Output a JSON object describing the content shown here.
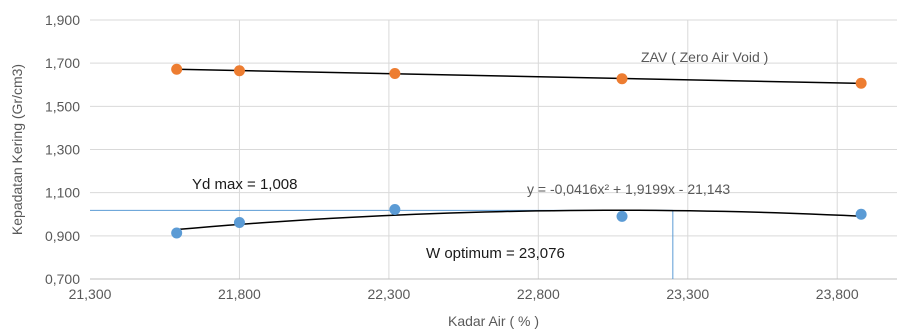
{
  "chart_data": {
    "type": "scatter",
    "xlabel": "Kadar Air ( % )",
    "ylabel": "Kepadatan Kering (Gr/cm3)",
    "xlim": [
      21300,
      24000
    ],
    "ylim": [
      0.7,
      1.9
    ],
    "x_ticks": [
      21300,
      21800,
      22300,
      22800,
      23300,
      23800
    ],
    "x_tick_labels": [
      "21,300",
      "21,800",
      "22,300",
      "22,800",
      "23,300",
      "23,800"
    ],
    "y_ticks": [
      0.7,
      0.9,
      1.1,
      1.3,
      1.5,
      1.7,
      1.9
    ],
    "y_tick_labels": [
      "0,700",
      "0,900",
      "1,100",
      "1,300",
      "1,500",
      "1,700",
      "1,900"
    ],
    "grid": true,
    "series": [
      {
        "name": "ZAV ( Zero Air Void )",
        "color": "#ED7D31",
        "x": [
          21590,
          21800,
          22320,
          23080,
          23880
        ],
        "y": [
          1.672,
          1.665,
          1.652,
          1.628,
          1.607
        ],
        "trend": "linear"
      },
      {
        "color": "#5B9BD5",
        "x": [
          21590,
          21800,
          22320,
          23080,
          23880
        ],
        "y": [
          0.913,
          0.962,
          1.022,
          0.99,
          1.0
        ],
        "trend": "poly2"
      }
    ],
    "annotations": {
      "zav_label": "ZAV ( Zero Air Void )",
      "yd_max": "Yd max = 1,008",
      "equation": "y = -0,0416x² + 1,9199x - 21,143",
      "w_optimum": "W optimum = 23,076"
    },
    "reference_lines": {
      "y": 1.018,
      "x": 23250
    },
    "colors": {
      "trendline": "#000000",
      "reference": "#5B9BD5",
      "grid": "#d9d9d9"
    }
  }
}
